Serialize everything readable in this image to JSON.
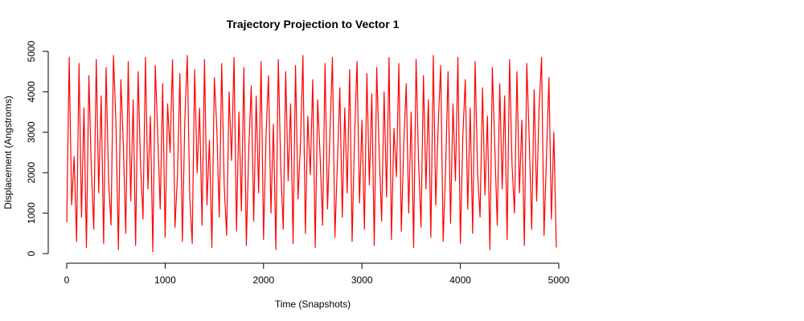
{
  "chart_data": {
    "type": "line",
    "title": "Trajectory Projection to Vector 1",
    "x_label": "Time (Snapshots)",
    "y_label": "Displacement (Angstroms)",
    "xlim": [
      0,
      5000
    ],
    "ylim": [
      0,
      5000
    ],
    "xticks": [
      0,
      1000,
      2000,
      3000,
      4000,
      5000
    ],
    "yticks": [
      0,
      1000,
      2000,
      3000,
      4000,
      5000
    ],
    "x": [
      0,
      25,
      50,
      75,
      100,
      125,
      150,
      175,
      200,
      225,
      250,
      275,
      300,
      325,
      350,
      375,
      400,
      425,
      450,
      475,
      500,
      525,
      550,
      575,
      600,
      625,
      650,
      675,
      700,
      725,
      750,
      775,
      800,
      825,
      850,
      875,
      900,
      925,
      950,
      975,
      1000,
      1025,
      1050,
      1075,
      1100,
      1125,
      1150,
      1175,
      1200,
      1225,
      1250,
      1275,
      1300,
      1325,
      1350,
      1375,
      1400,
      1425,
      1450,
      1475,
      1500,
      1525,
      1550,
      1575,
      1600,
      1625,
      1650,
      1675,
      1700,
      1725,
      1750,
      1775,
      1800,
      1825,
      1850,
      1875,
      1900,
      1925,
      1950,
      1975,
      2000,
      2025,
      2050,
      2075,
      2100,
      2125,
      2150,
      2175,
      2200,
      2225,
      2250,
      2275,
      2300,
      2325,
      2350,
      2375,
      2400,
      2425,
      2450,
      2475,
      2500,
      2525,
      2550,
      2575,
      2600,
      2625,
      2650,
      2675,
      2700,
      2725,
      2750,
      2775,
      2800,
      2825,
      2850,
      2875,
      2900,
      2925,
      2950,
      2975,
      3000,
      3025,
      3050,
      3075,
      3100,
      3125,
      3150,
      3175,
      3200,
      3225,
      3250,
      3275,
      3300,
      3325,
      3350,
      3375,
      3400,
      3425,
      3450,
      3475,
      3500,
      3525,
      3550,
      3575,
      3600,
      3625,
      3650,
      3675,
      3700,
      3725,
      3750,
      3775,
      3800,
      3825,
      3850,
      3875,
      3900,
      3925,
      3950,
      3975,
      4000,
      4025,
      4050,
      4075,
      4100,
      4125,
      4150,
      4175,
      4200,
      4225,
      4250,
      4275,
      4300,
      4325,
      4350,
      4375,
      4400,
      4425,
      4450,
      4475,
      4500,
      4525,
      4550,
      4575,
      4600,
      4625,
      4650,
      4675,
      4700,
      4725,
      4750,
      4775,
      4800,
      4825,
      4850,
      4875,
      4900,
      4925,
      4950,
      4975
    ],
    "series": [
      {
        "color": "#ff0000",
        "values": [
          780,
          4850,
          1200,
          2400,
          300,
          4700,
          900,
          3600,
          150,
          4400,
          2100,
          600,
          4800,
          1500,
          3900,
          250,
          4600,
          1800,
          700,
          4900,
          3200,
          100,
          4300,
          2700,
          500,
          4750,
          1300,
          3800,
          200,
          4500,
          2200,
          850,
          4850,
          1600,
          3400,
          50,
          4650,
          2900,
          1100,
          4200,
          400,
          3700,
          2500,
          4800,
          650,
          1900,
          4450,
          300,
          3300,
          4900,
          1400,
          250,
          4550,
          2000,
          3600,
          700,
          4800,
          1200,
          2800,
          150,
          4350,
          3100,
          900,
          4700,
          1700,
          450,
          4000,
          2300,
          4850,
          550,
          3500,
          1050,
          4600,
          200,
          2600,
          4150,
          800,
          3900,
          1500,
          4750,
          350,
          2900,
          4400,
          1000,
          3200,
          100,
          4800,
          2100,
          600,
          4500,
          1800,
          3700,
          250,
          4650,
          1350,
          2700,
          4900,
          500,
          3400,
          1950,
          4300,
          150,
          3800,
          2400,
          700,
          4700,
          1100,
          3000,
          4850,
          400,
          2200,
          4100,
          900,
          3600,
          1500,
          4550,
          300,
          2900,
          4750,
          1250,
          3300,
          600,
          4450,
          1700,
          3950,
          200,
          4600,
          2500,
          800,
          4000,
          1400,
          4850,
          350,
          3100,
          1900,
          4700,
          550,
          2700,
          4200,
          1000,
          3500,
          150,
          4800,
          2300,
          650,
          4400,
          1600,
          3800,
          400,
          4900,
          1200,
          3200,
          4650,
          300,
          2100,
          4500,
          750,
          3700,
          1800,
          4850,
          250,
          2900,
          4300,
          1100,
          3600,
          500,
          4750,
          2000,
          900,
          4100,
          1450,
          3400,
          100,
          4600,
          2600,
          700,
          4200,
          1600,
          3900,
          350,
          4800,
          2200,
          1000,
          4500,
          1500,
          3300,
          200,
          4700,
          2800,
          600,
          4050,
          1300,
          3600,
          4850,
          450,
          2400,
          4350,
          850,
          3000,
          150
        ]
      }
    ]
  }
}
